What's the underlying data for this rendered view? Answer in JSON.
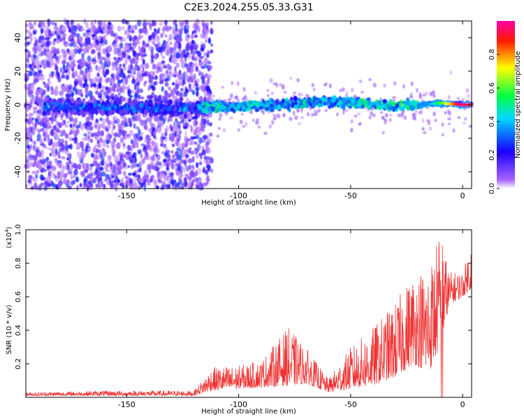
{
  "figure": {
    "title": "C2E3.2024.255.05.33.G31"
  },
  "chart_data": [
    {
      "type": "heatmap",
      "xlabel": "Height of straight line (km)",
      "ylabel": "Frequency (Hz)",
      "xlim": [
        -195,
        4
      ],
      "ylim": [
        -50,
        50
      ],
      "xticks": [
        -150,
        -100,
        -50,
        0
      ],
      "yticks": [
        -40,
        -20,
        0,
        20,
        40
      ],
      "colorbar": {
        "label": "Normalized spectral amplitude",
        "range": [
          0,
          1
        ],
        "ticks": [
          0.0,
          0.2,
          0.4,
          0.6,
          0.8
        ],
        "tick_labels": [
          "0.0",
          "0.2",
          "0.4",
          "0.6",
          "0.8"
        ],
        "colormap": [
          "#ffffff",
          "#8800ff",
          "#0000ff",
          "#00ffff",
          "#00ff00",
          "#ffff00",
          "#ff0000",
          "#ff00ff"
        ]
      },
      "features": {
        "noise_region_x": [
          -195,
          -118
        ],
        "center_line": [
          {
            "x": -185,
            "y": -1
          },
          {
            "x": -150,
            "y": -2
          },
          {
            "x": -120,
            "y": -2
          },
          {
            "x": -100,
            "y": -1
          },
          {
            "x": -80,
            "y": 0
          },
          {
            "x": -60,
            "y": 2
          },
          {
            "x": -45,
            "y": 1
          },
          {
            "x": -30,
            "y": -1
          },
          {
            "x": -20,
            "y": 0
          },
          {
            "x": -10,
            "y": 1
          },
          {
            "x": 0,
            "y": 0
          },
          {
            "x": 4,
            "y": 0
          }
        ],
        "peak": {
          "x": 0,
          "y": 0,
          "value": 1.0
        }
      }
    },
    {
      "type": "line",
      "xlabel": "Height of straight line (km)",
      "ylabel": "SNR (10 * v/v)",
      "y_multiplier_label": "(x10",
      "y_multiplier_exp": "4",
      "y_multiplier_close": ")",
      "xlim": [
        -195,
        4
      ],
      "ylim": [
        0,
        1.0
      ],
      "xticks": [
        -150,
        -100,
        -50,
        0
      ],
      "yticks": [
        0.2,
        0.4,
        0.6,
        0.8,
        1.0
      ],
      "ytick_labels": [
        "0.2",
        "0.4",
        "0.6",
        "0.8",
        "1.0"
      ],
      "color": "#ee3333",
      "envelope": [
        {
          "x": -195,
          "base": 0.01,
          "amp": 0.02
        },
        {
          "x": -160,
          "base": 0.01,
          "amp": 0.03
        },
        {
          "x": -120,
          "base": 0.01,
          "amp": 0.03
        },
        {
          "x": -112,
          "base": 0.04,
          "amp": 0.14
        },
        {
          "x": -100,
          "base": 0.05,
          "amp": 0.14
        },
        {
          "x": -90,
          "base": 0.06,
          "amp": 0.16
        },
        {
          "x": -78,
          "base": 0.07,
          "amp": 0.35
        },
        {
          "x": -70,
          "base": 0.08,
          "amp": 0.22
        },
        {
          "x": -60,
          "base": 0.03,
          "amp": 0.08
        },
        {
          "x": -50,
          "base": 0.05,
          "amp": 0.25
        },
        {
          "x": -40,
          "base": 0.07,
          "amp": 0.35
        },
        {
          "x": -30,
          "base": 0.12,
          "amp": 0.45
        },
        {
          "x": -22,
          "base": 0.2,
          "amp": 0.55
        },
        {
          "x": -15,
          "base": 0.15,
          "amp": 0.65
        },
        {
          "x": -10,
          "base": 0.3,
          "amp": 0.7
        },
        {
          "x": -6,
          "base": 0.55,
          "amp": 0.2
        },
        {
          "x": 0,
          "base": 0.6,
          "amp": 0.15
        },
        {
          "x": 4,
          "base": 0.65,
          "amp": 0.28
        }
      ]
    }
  ]
}
